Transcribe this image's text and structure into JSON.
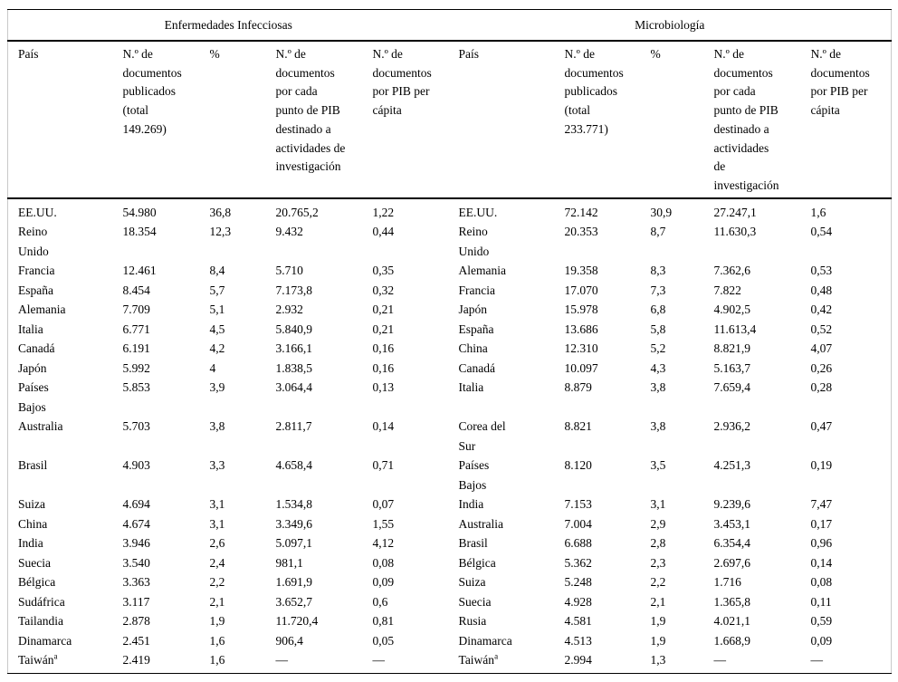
{
  "table": {
    "group_headers": [
      "Enfermedades Infecciosas",
      "Microbiología"
    ],
    "column_headers": {
      "left": [
        "País",
        "N.º de\ndocumentos\npublicados\n(total\n149.269)",
        "%",
        "N.º de\ndocumentos\npor cada\npunto de PIB\ndestinado a\nactividades de\ninvestigación",
        "N.º de\ndocumentos\npor PIB per\ncápita"
      ],
      "right": [
        "País",
        "N.º de\ndocumentos\npublicados\n(total\n233.771)",
        "%",
        "N.º de\ndocumentos\npor cada\npunto de PIB\ndestinado a\nactividades\nde\ninvestigación",
        "N.º de\ndocumentos\npor PIB per\ncápita"
      ]
    },
    "rows": [
      {
        "left": {
          "country": "EE.UU.",
          "docs": "54.980",
          "pct": "36,8",
          "per_gdp_point": "20.765,2",
          "per_gdp_capita": "1,22"
        },
        "right": {
          "country": "EE.UU.",
          "docs": "72.142",
          "pct": "30,9",
          "per_gdp_point": "27.247,1",
          "per_gdp_capita": "1,6"
        }
      },
      {
        "left": {
          "country": "Reino\nUnido",
          "docs": "18.354",
          "pct": "12,3",
          "per_gdp_point": "9.432",
          "per_gdp_capita": "0,44"
        },
        "right": {
          "country": "Reino\nUnido",
          "docs": "20.353",
          "pct": "8,7",
          "per_gdp_point": "11.630,3",
          "per_gdp_capita": "0,54"
        }
      },
      {
        "left": {
          "country": "Francia",
          "docs": "12.461",
          "pct": "8,4",
          "per_gdp_point": "5.710",
          "per_gdp_capita": "0,35"
        },
        "right": {
          "country": "Alemania",
          "docs": "19.358",
          "pct": "8,3",
          "per_gdp_point": "7.362,6",
          "per_gdp_capita": "0,53"
        }
      },
      {
        "left": {
          "country": "España",
          "docs": "8.454",
          "pct": "5,7",
          "per_gdp_point": "7.173,8",
          "per_gdp_capita": "0,32"
        },
        "right": {
          "country": "Francia",
          "docs": "17.070",
          "pct": "7,3",
          "per_gdp_point": "7.822",
          "per_gdp_capita": "0,48"
        }
      },
      {
        "left": {
          "country": "Alemania",
          "docs": "7.709",
          "pct": "5,1",
          "per_gdp_point": "2.932",
          "per_gdp_capita": "0,21"
        },
        "right": {
          "country": "Japón",
          "docs": "15.978",
          "pct": "6,8",
          "per_gdp_point": "4.902,5",
          "per_gdp_capita": "0,42"
        }
      },
      {
        "left": {
          "country": "Italia",
          "docs": "6.771",
          "pct": "4,5",
          "per_gdp_point": "5.840,9",
          "per_gdp_capita": "0,21"
        },
        "right": {
          "country": "España",
          "docs": "13.686",
          "pct": "5,8",
          "per_gdp_point": "11.613,4",
          "per_gdp_capita": "0,52"
        }
      },
      {
        "left": {
          "country": "Canadá",
          "docs": "6.191",
          "pct": "4,2",
          "per_gdp_point": "3.166,1",
          "per_gdp_capita": "0,16"
        },
        "right": {
          "country": "China",
          "docs": "12.310",
          "pct": "5,2",
          "per_gdp_point": "8.821,9",
          "per_gdp_capita": "4,07"
        }
      },
      {
        "left": {
          "country": "Japón",
          "docs": "5.992",
          "pct": "4",
          "per_gdp_point": "1.838,5",
          "per_gdp_capita": "0,16"
        },
        "right": {
          "country": "Canadá",
          "docs": "10.097",
          "pct": "4,3",
          "per_gdp_point": "5.163,7",
          "per_gdp_capita": "0,26"
        }
      },
      {
        "left": {
          "country": "Países\nBajos",
          "docs": "5.853",
          "pct": "3,9",
          "per_gdp_point": "3.064,4",
          "per_gdp_capita": "0,13"
        },
        "right": {
          "country": "Italia",
          "docs": "8.879",
          "pct": "3,8",
          "per_gdp_point": "7.659,4",
          "per_gdp_capita": "0,28"
        }
      },
      {
        "left": {
          "country": "Australia",
          "docs": "5.703",
          "pct": "3,8",
          "per_gdp_point": "2.811,7",
          "per_gdp_capita": "0,14"
        },
        "right": {
          "country": "Corea del\nSur",
          "docs": "8.821",
          "pct": "3,8",
          "per_gdp_point": "2.936,2",
          "per_gdp_capita": "0,47"
        }
      },
      {
        "left": {
          "country": "Brasil",
          "docs": "4.903",
          "pct": "3,3",
          "per_gdp_point": "4.658,4",
          "per_gdp_capita": "0,71"
        },
        "right": {
          "country": "Países\nBajos",
          "docs": "8.120",
          "pct": "3,5",
          "per_gdp_point": "4.251,3",
          "per_gdp_capita": "0,19"
        }
      },
      {
        "left": {
          "country": "Suiza",
          "docs": "4.694",
          "pct": "3,1",
          "per_gdp_point": "1.534,8",
          "per_gdp_capita": "0,07"
        },
        "right": {
          "country": "India",
          "docs": "7.153",
          "pct": "3,1",
          "per_gdp_point": "9.239,6",
          "per_gdp_capita": "7,47"
        }
      },
      {
        "left": {
          "country": "China",
          "docs": "4.674",
          "pct": "3,1",
          "per_gdp_point": "3.349,6",
          "per_gdp_capita": "1,55"
        },
        "right": {
          "country": "Australia",
          "docs": "7.004",
          "pct": "2,9",
          "per_gdp_point": "3.453,1",
          "per_gdp_capita": "0,17"
        }
      },
      {
        "left": {
          "country": "India",
          "docs": "3.946",
          "pct": "2,6",
          "per_gdp_point": "5.097,1",
          "per_gdp_capita": "4,12"
        },
        "right": {
          "country": "Brasil",
          "docs": "6.688",
          "pct": "2,8",
          "per_gdp_point": "6.354,4",
          "per_gdp_capita": "0,96"
        }
      },
      {
        "left": {
          "country": "Suecia",
          "docs": "3.540",
          "pct": "2,4",
          "per_gdp_point": "981,1",
          "per_gdp_capita": "0,08"
        },
        "right": {
          "country": "Bélgica",
          "docs": "5.362",
          "pct": "2,3",
          "per_gdp_point": "2.697,6",
          "per_gdp_capita": "0,14"
        }
      },
      {
        "left": {
          "country": "Bélgica",
          "docs": "3.363",
          "pct": "2,2",
          "per_gdp_point": "1.691,9",
          "per_gdp_capita": "0,09"
        },
        "right": {
          "country": "Suiza",
          "docs": "5.248",
          "pct": "2,2",
          "per_gdp_point": "1.716",
          "per_gdp_capita": "0,08"
        }
      },
      {
        "left": {
          "country": "Sudáfrica",
          "docs": "3.117",
          "pct": "2,1",
          "per_gdp_point": "3.652,7",
          "per_gdp_capita": "0,6"
        },
        "right": {
          "country": "Suecia",
          "docs": "4.928",
          "pct": "2,1",
          "per_gdp_point": "1.365,8",
          "per_gdp_capita": "0,11"
        }
      },
      {
        "left": {
          "country": "Tailandia",
          "docs": "2.878",
          "pct": "1,9",
          "per_gdp_point": "11.720,4",
          "per_gdp_capita": "0,81"
        },
        "right": {
          "country": "Rusia",
          "docs": "4.581",
          "pct": "1,9",
          "per_gdp_point": "4.021,1",
          "per_gdp_capita": "0,59"
        }
      },
      {
        "left": {
          "country": "Dinamarca",
          "docs": "2.451",
          "pct": "1,6",
          "per_gdp_point": "906,4",
          "per_gdp_capita": "0,05"
        },
        "right": {
          "country": "Dinamarca",
          "docs": "4.513",
          "pct": "1,9",
          "per_gdp_point": "1.668,9",
          "per_gdp_capita": "0,09"
        }
      },
      {
        "left": {
          "country": "Taiwán",
          "country_sup": "a",
          "docs": "2.419",
          "pct": "1,6",
          "per_gdp_point": "—",
          "per_gdp_capita": "—"
        },
        "right": {
          "country": "Taiwán",
          "country_sup": "a",
          "docs": "2.994",
          "pct": "1,3",
          "per_gdp_point": "—",
          "per_gdp_capita": "—"
        }
      }
    ]
  }
}
